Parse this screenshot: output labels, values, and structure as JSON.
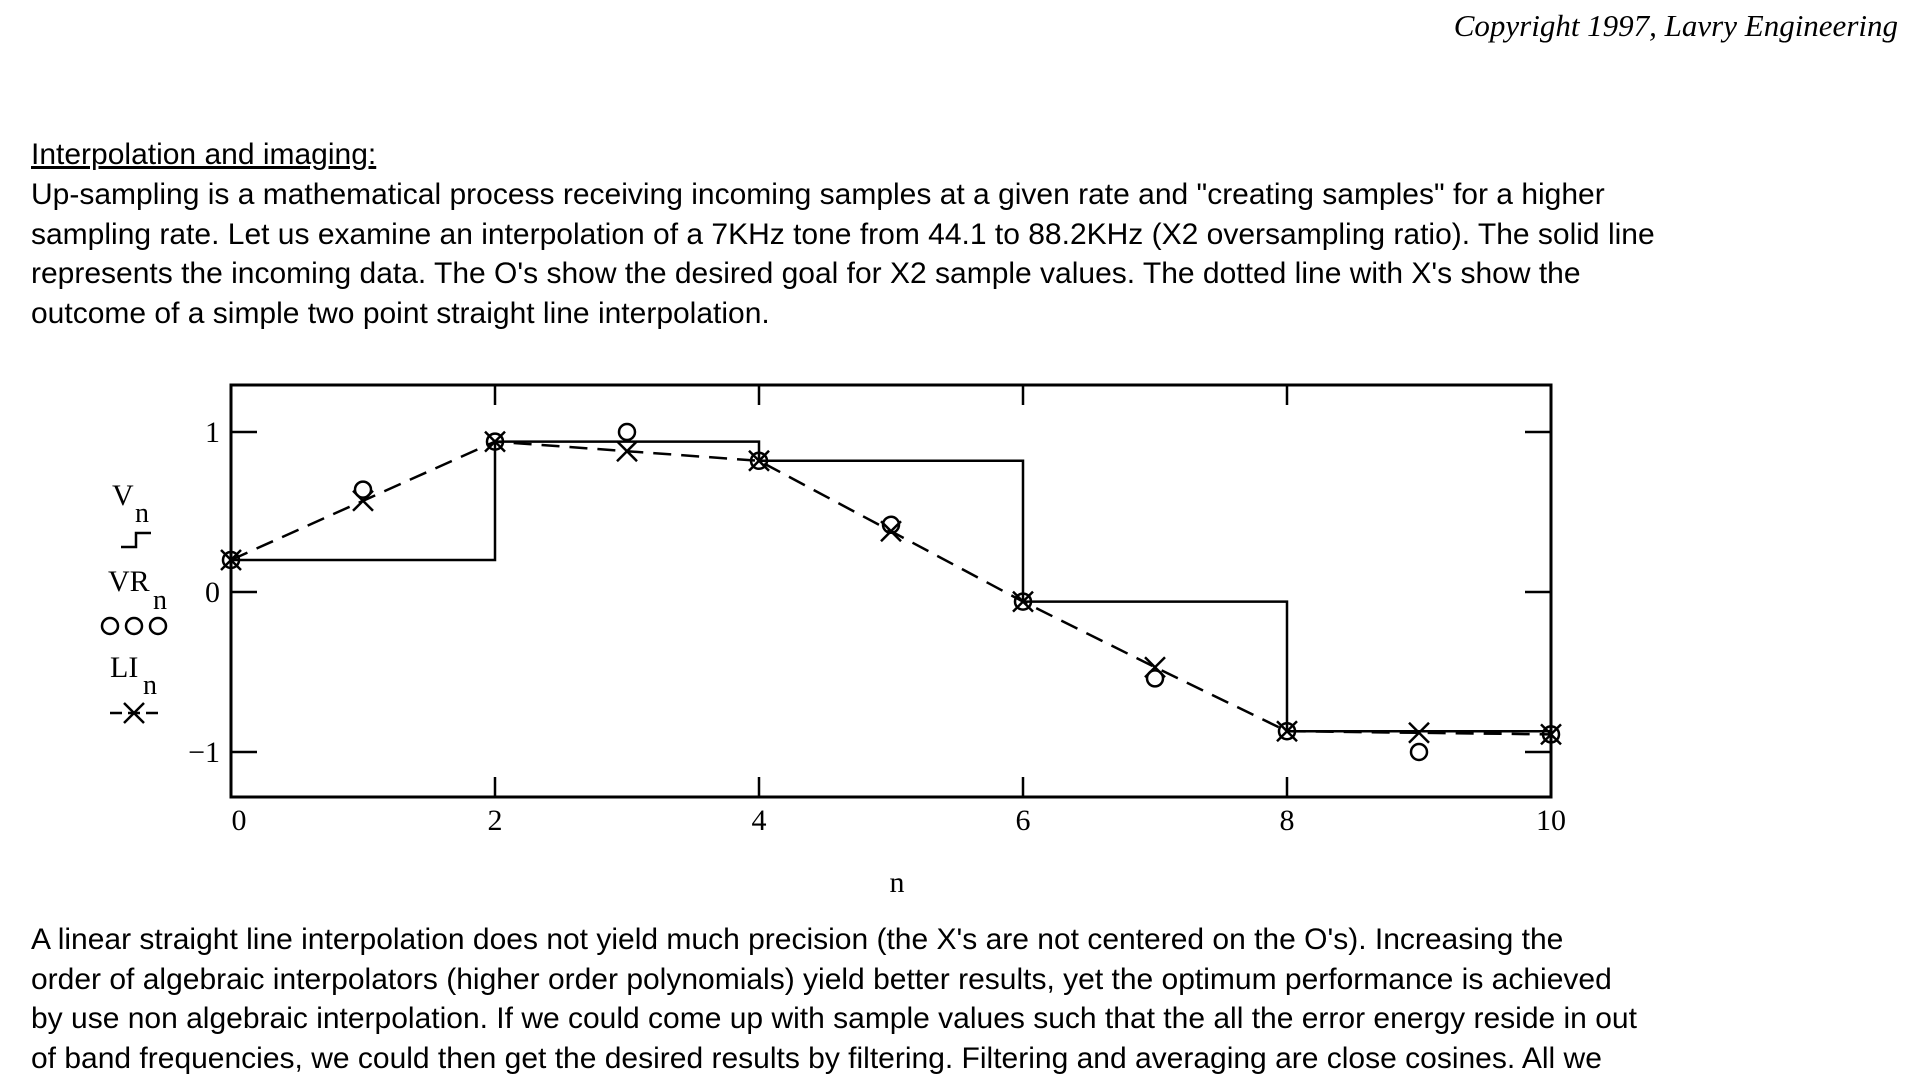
{
  "header": {
    "copyright": "Copyright 1997, Lavry Engineering"
  },
  "section": {
    "heading": "Interpolation and imaging:",
    "intro_lines": [
      "Up-sampling is a mathematical process receiving incoming samples at a given rate and \"creating samples\" for a higher",
      "sampling rate. Let us examine an interpolation of a 7KHz tone from 44.1 to 88.2KHz (X2 oversampling ratio). The solid line",
      "represents the incoming data. The O's show the desired goal for X2 sample values. The dotted line with X's show the",
      "outcome of a simple two point straight line interpolation."
    ],
    "followup_lines": [
      "A linear straight line interpolation does not yield much precision (the X's are not centered on the O's).  Increasing the",
      "order of algebraic interpolators (higher order polynomials) yield better results, yet the optimum performance is achieved",
      "by use non algebraic interpolation. If we could come up with sample values such that the all the error energy reside in out",
      "of band frequencies, we could then get the desired results by filtering. Filtering and averaging are close cosines. All we"
    ]
  },
  "chart_data": {
    "type": "line",
    "title": "",
    "xlabel": "n",
    "ylabel": "",
    "xlim": [
      0,
      10
    ],
    "ylim": [
      -1.3,
      1.3
    ],
    "xticks": [
      0,
      2,
      4,
      6,
      8,
      10
    ],
    "yticks": [
      -1,
      0,
      1
    ],
    "xtick_labels": [
      "0",
      "2",
      "4",
      "6",
      "8",
      "10"
    ],
    "ytick_labels": [
      "−1",
      "0",
      "1"
    ],
    "grid": false,
    "legend": [
      {
        "name": "V",
        "sub": "n",
        "style": "step-solid"
      },
      {
        "name": "VR",
        "sub": "n",
        "style": "circle-markers"
      },
      {
        "name": "LI",
        "sub": "n",
        "style": "dashed-x"
      }
    ],
    "series": [
      {
        "name": "Vn",
        "style": "step-solid",
        "x": [
          0,
          2,
          4,
          6,
          8,
          10
        ],
        "y": [
          0.2,
          0.94,
          0.82,
          -0.06,
          -0.87,
          -0.89
        ]
      },
      {
        "name": "VRn",
        "style": "circle-markers",
        "x": [
          0,
          1,
          2,
          3,
          4,
          5,
          6,
          7,
          8,
          9,
          10
        ],
        "y": [
          0.2,
          0.64,
          0.94,
          1.0,
          0.82,
          0.42,
          -0.06,
          -0.54,
          -0.87,
          -1.0,
          -0.89
        ]
      },
      {
        "name": "LIn",
        "style": "dashed-x",
        "x": [
          0,
          1,
          2,
          3,
          4,
          5,
          6,
          7,
          8,
          9,
          10
        ],
        "y": [
          0.2,
          0.57,
          0.94,
          0.88,
          0.82,
          0.38,
          -0.06,
          -0.47,
          -0.87,
          -0.88,
          -0.89
        ]
      }
    ]
  }
}
